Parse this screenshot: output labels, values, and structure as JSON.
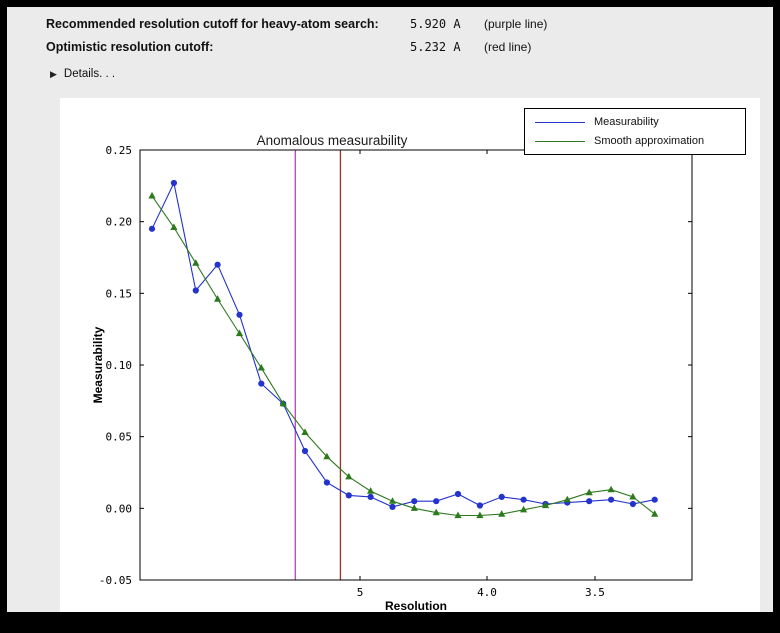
{
  "header": {
    "rows": [
      {
        "label": "Recommended resolution cutoff for heavy-atom search:",
        "value": "5.920 A",
        "note": "(purple line)"
      },
      {
        "label": "Optimistic resolution cutoff:",
        "value": "5.232 A",
        "note": "(red line)"
      }
    ],
    "details_icon": "▶",
    "details_label": "Details. . ."
  },
  "chart_data": {
    "type": "line",
    "title": "Anomalous measurability",
    "xlabel": "Resolution",
    "ylabel": "Measurability",
    "x_axis_note": "x axis is linear in 1/d^2; tick labels show d-spacing in Angstrom, resolution number decreases to the right",
    "x_s2_range": [
      0.00102,
      0.09882
    ],
    "ylim": [
      -0.05,
      0.25
    ],
    "y_ticks": [
      -0.05,
      0,
      0.05,
      0.1,
      0.15,
      0.2,
      0.25
    ],
    "x_ticks": [
      {
        "label": "5",
        "d": 5.0
      },
      {
        "label": "4.0",
        "d": 4.0
      },
      {
        "label": "3.5",
        "d": 3.5
      }
    ],
    "vlines": [
      {
        "name": "recommended-cutoff-purple",
        "d": 5.92,
        "color": "#bb44bb"
      },
      {
        "name": "optimistic-cutoff-red",
        "d": 5.232,
        "color": "#993322"
      }
    ],
    "x_s2": [
      0.00315,
      0.00702,
      0.0109,
      0.01477,
      0.01864,
      0.02252,
      0.02639,
      0.03026,
      0.03413,
      0.03801,
      0.04188,
      0.04575,
      0.04962,
      0.0535,
      0.05737,
      0.06124,
      0.06511,
      0.06899,
      0.07286,
      0.07673,
      0.0806,
      0.08448,
      0.08835,
      0.09222
    ],
    "series": [
      {
        "name": "Measurability",
        "color": "#2433cc",
        "marker": "circle",
        "y": [
          0.195,
          0.227,
          0.152,
          0.17,
          0.135,
          0.087,
          0.073,
          0.04,
          0.018,
          0.009,
          0.008,
          0.001,
          0.005,
          0.005,
          0.01,
          0.002,
          0.008,
          0.006,
          0.003,
          0.004,
          0.005,
          0.006,
          0.003,
          0.006
        ]
      },
      {
        "name": "Smooth approximation",
        "color": "#2d7a1e",
        "marker": "triangle",
        "y": [
          0.218,
          0.196,
          0.171,
          0.146,
          0.122,
          0.098,
          0.073,
          0.053,
          0.036,
          0.022,
          0.012,
          0.005,
          0,
          -0.003,
          -0.005,
          -0.005,
          -0.004,
          -0.001,
          0.002,
          0.006,
          0.011,
          0.013,
          0.008,
          -0.004
        ]
      }
    ],
    "legend_position": "upper right, above plot frame"
  }
}
